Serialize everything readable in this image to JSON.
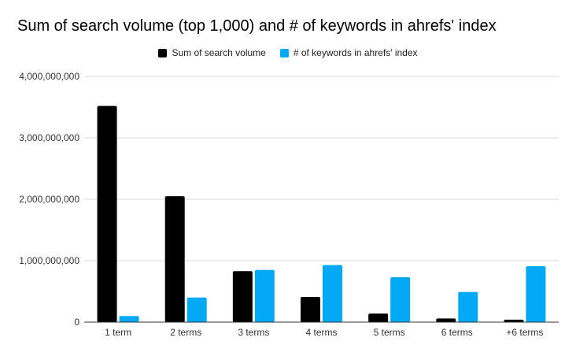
{
  "chart_data": {
    "type": "bar",
    "title": "Sum of search volume (top 1,000) and # of keywords in ahrefs' index",
    "xlabel": "",
    "ylabel": "",
    "categories": [
      "1 term",
      "2 terms",
      "3 terms",
      "4 terms",
      "5 terms",
      "6 terms",
      "+6 terms"
    ],
    "series": [
      {
        "name": "Sum of search volume",
        "color": "#000000",
        "values": [
          3520000000,
          2050000000,
          830000000,
          410000000,
          140000000,
          60000000,
          40000000
        ]
      },
      {
        "name": "# of keywords in ahrefs' index",
        "color": "#03a9f4",
        "values": [
          100000000,
          400000000,
          850000000,
          930000000,
          730000000,
          490000000,
          910000000
        ]
      }
    ],
    "ylim": [
      0,
      4000000000
    ],
    "yticks": [
      "0",
      "1,000,000,000",
      "2,000,000,000",
      "3,000,000,000",
      "4,000,000,000"
    ],
    "grid": true,
    "legend_position": "top"
  }
}
